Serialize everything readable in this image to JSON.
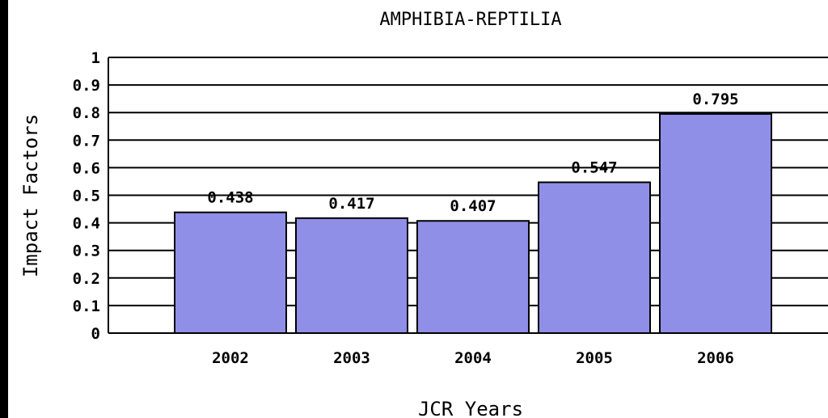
{
  "chart_data": {
    "type": "bar",
    "title": "AMPHIBIA-REPTILIA",
    "xlabel": "JCR Years",
    "ylabel": "Impact Factors",
    "categories": [
      "2002",
      "2003",
      "2004",
      "2005",
      "2006"
    ],
    "values": [
      0.438,
      0.417,
      0.407,
      0.547,
      0.795
    ],
    "value_labels": [
      "0.438",
      "0.417",
      "0.407",
      "0.547",
      "0.795"
    ],
    "ylim": [
      0,
      1
    ],
    "yticks": [
      "0",
      "0.1",
      "0.2",
      "0.3",
      "0.4",
      "0.5",
      "0.6",
      "0.7",
      "0.8",
      "0.9",
      "1"
    ],
    "grid": true,
    "legend": "none",
    "bar_color": "#8f8fe8",
    "edge_color": "#000000"
  }
}
